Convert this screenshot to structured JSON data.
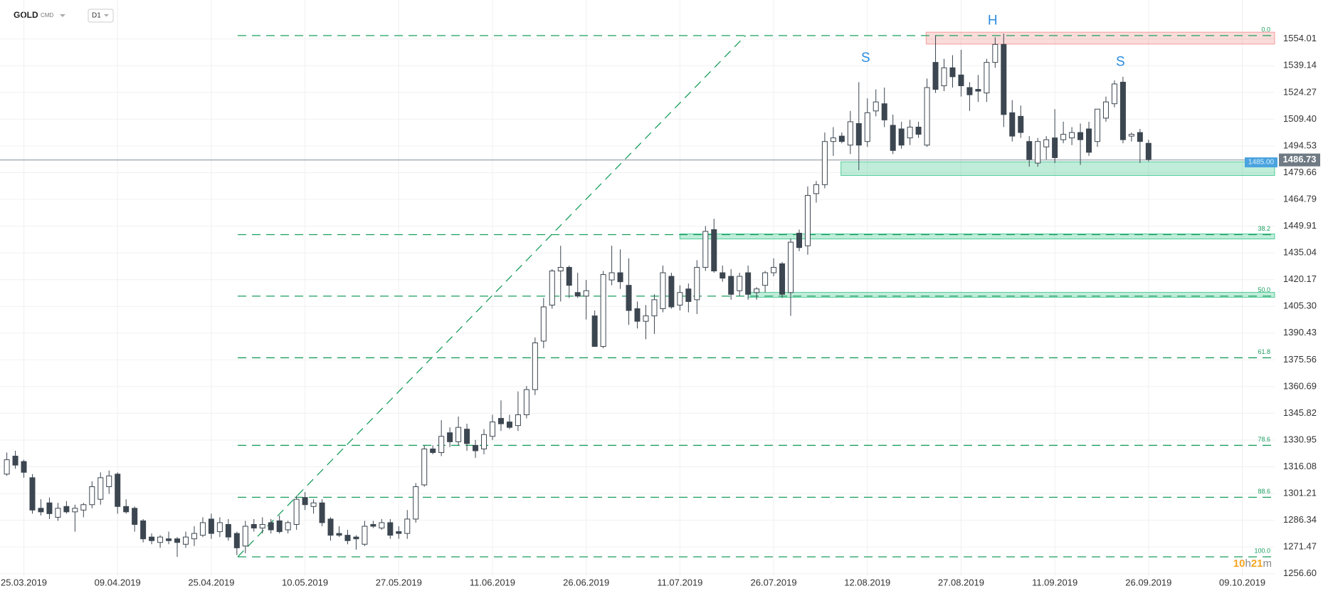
{
  "header": {
    "symbol": "GOLD",
    "market": "CMD",
    "interval": "D1"
  },
  "countdown": [
    "10",
    "h",
    "21",
    "m"
  ],
  "chart_data": {
    "type": "candlestick",
    "ylim": [
      1255.2,
      1575.7
    ],
    "xlim": [
      -0.8,
      148.8
    ],
    "grid": true,
    "yticks": [
      {
        "value": 1256.6,
        "label": "1256.60"
      },
      1271.47,
      1286.34,
      1301.21,
      1316.08,
      1330.95,
      1345.82,
      1360.69,
      1375.56,
      {
        "value": 1390.43,
        "label": "1390.43"
      },
      {
        "value": 1405.3,
        "label": "1405.30"
      },
      1420.17,
      1435.04,
      1449.91,
      1464.79,
      1479.66,
      1494.53,
      {
        "value": 1509.4,
        "label": "1509.40"
      },
      1524.27,
      1539.14,
      1554.01
    ],
    "xticks": [
      {
        "value": 2,
        "label": "25.03.2019"
      },
      {
        "value": 13,
        "label": "09.04.2019"
      },
      {
        "value": 24,
        "label": "25.04.2019"
      },
      {
        "value": 35,
        "label": "10.05.2019"
      },
      {
        "value": 46,
        "label": "27.05.2019"
      },
      {
        "value": 57,
        "label": "11.06.2019"
      },
      {
        "value": 68,
        "label": "26.06.2019"
      },
      {
        "value": 79,
        "label": "11.07.2019"
      },
      {
        "value": 90,
        "label": "26.07.2019"
      },
      {
        "value": 101,
        "label": "12.08.2019"
      },
      {
        "value": 112,
        "label": "27.08.2019"
      },
      {
        "value": 123,
        "label": "11.09.2019"
      },
      {
        "value": 134,
        "label": "26.09.2019"
      },
      {
        "value": 145,
        "label": "09.10.2019"
      }
    ],
    "up_color": "#ffffff",
    "down_color": "#3c4650",
    "open": [
      1312,
      1322,
      1319,
      1310,
      1293,
      1296,
      1288,
      1294,
      1291,
      1292,
      1295,
      1298,
      1305,
      1312,
      1294,
      1293,
      1286,
      1277,
      1274,
      1276,
      1276,
      1273,
      1276,
      1278,
      1287,
      1280,
      1284,
      1279,
      1272,
      1284,
      1282,
      1285,
      1286,
      1281,
      1284,
      1299,
      1294,
      1296,
      1287,
      1279,
      1278,
      1277,
      1273,
      1284,
      1282,
      1285,
      1280,
      1279,
      1287,
      1306,
      1326,
      1324,
      1335,
      1330,
      1337,
      1328,
      1326,
      1333,
      1343,
      1341,
      1339,
      1345,
      1359,
      1386,
      1406,
      1425,
      1427,
      1413,
      1411,
      1400,
      1383,
      1420,
      1424,
      1417,
      1404,
      1397,
      1400,
      1404,
      1422,
      1406,
      1415,
      1409,
      1427,
      1448,
      1424,
      1422,
      1414,
      1424,
      1413,
      1417,
      1424,
      1429,
      1413,
      1446,
      1439,
      1468,
      1473,
      1497,
      1500,
      1495,
      1507,
      1497,
      1514,
      1518,
      1506,
      1504,
      1499,
      1505,
      1495,
      1541,
      1528,
      1538,
      1534,
      1527,
      1526,
      1524,
      1541,
      1551,
      1513,
      1511,
      1497,
      1485,
      1494,
      1499,
      1498,
      1499,
      1502,
      1504,
      1497,
      1510,
      1518,
      1530,
      1500,
      1502,
      1496
    ],
    "high": [
      1324,
      1325,
      1320,
      1312,
      1298,
      1299,
      1296,
      1297,
      1295,
      1296,
      1308,
      1313,
      1314,
      1313,
      1298,
      1294,
      1287,
      1279,
      1278,
      1280,
      1277,
      1280,
      1283,
      1288,
      1290,
      1288,
      1287,
      1280,
      1286,
      1287,
      1288,
      1287,
      1289,
      1286,
      1300,
      1302,
      1298,
      1298,
      1288,
      1283,
      1281,
      1278,
      1286,
      1286,
      1287,
      1287,
      1283,
      1292,
      1307,
      1328,
      1328,
      1342,
      1338,
      1344,
      1340,
      1331,
      1337,
      1345,
      1353,
      1345,
      1358,
      1361,
      1388,
      1410,
      1426,
      1439,
      1428,
      1424,
      1420,
      1403,
      1425,
      1439,
      1437,
      1432,
      1408,
      1406,
      1412,
      1428,
      1424,
      1417,
      1418,
      1431,
      1450,
      1454,
      1428,
      1426,
      1424,
      1428,
      1416,
      1425,
      1432,
      1430,
      1443,
      1448,
      1472,
      1475,
      1502,
      1505,
      1502,
      1514,
      1530,
      1521,
      1526,
      1527,
      1512,
      1508,
      1509,
      1508,
      1532,
      1556,
      1543,
      1545,
      1548,
      1530,
      1534,
      1543,
      1555,
      1557,
      1520,
      1517,
      1500,
      1499,
      1500,
      1515,
      1508,
      1505,
      1507,
      1508,
      1515,
      1522,
      1531,
      1533,
      1502,
      1504,
      1498
    ],
    "low": [
      1311,
      1315,
      1310,
      1290,
      1289,
      1287,
      1286,
      1290,
      1280,
      1288,
      1293,
      1295,
      1301,
      1290,
      1290,
      1280,
      1274,
      1273,
      1271,
      1273,
      1266,
      1271,
      1272,
      1277,
      1276,
      1277,
      1275,
      1267,
      1268,
      1280,
      1279,
      1279,
      1279,
      1279,
      1281,
      1292,
      1290,
      1283,
      1275,
      1277,
      1273,
      1270,
      1272,
      1282,
      1281,
      1276,
      1276,
      1276,
      1285,
      1305,
      1323,
      1322,
      1327,
      1328,
      1325,
      1321,
      1323,
      1331,
      1336,
      1337,
      1336,
      1343,
      1356,
      1382,
      1404,
      1408,
      1410,
      1410,
      1398,
      1383,
      1382,
      1417,
      1415,
      1395,
      1393,
      1387,
      1390,
      1402,
      1404,
      1403,
      1402,
      1401,
      1425,
      1424,
      1419,
      1409,
      1411,
      1409,
      1409,
      1413,
      1422,
      1410,
      1400,
      1436,
      1434,
      1463,
      1471,
      1489,
      1496,
      1490,
      1481,
      1494,
      1511,
      1505,
      1490,
      1493,
      1495,
      1499,
      1494,
      1524,
      1525,
      1527,
      1522,
      1514,
      1519,
      1519,
      1538,
      1505,
      1497,
      1499,
      1483,
      1483,
      1487,
      1485,
      1496,
      1495,
      1484,
      1489,
      1494,
      1508,
      1516,
      1496,
      1497,
      1485,
      1486
    ],
    "close": [
      1320,
      1317,
      1313,
      1292,
      1291,
      1290,
      1293,
      1291,
      1293,
      1295,
      1305,
      1310,
      1311,
      1294,
      1291,
      1284,
      1276,
      1275,
      1277,
      1275,
      1274,
      1277,
      1279,
      1285,
      1279,
      1285,
      1277,
      1271,
      1283,
      1282,
      1284,
      1281,
      1280,
      1285,
      1298,
      1295,
      1296,
      1285,
      1278,
      1278,
      1275,
      1276,
      1283,
      1283,
      1285,
      1278,
      1279,
      1287,
      1305,
      1326,
      1324,
      1333,
      1330,
      1338,
      1329,
      1325,
      1334,
      1341,
      1340,
      1338,
      1345,
      1359,
      1385,
      1405,
      1425,
      1427,
      1417,
      1411,
      1414,
      1383,
      1423,
      1424,
      1419,
      1403,
      1397,
      1400,
      1409,
      1424,
      1405,
      1413,
      1408,
      1427,
      1447,
      1425,
      1421,
      1412,
      1422,
      1412,
      1415,
      1424,
      1427,
      1412,
      1441,
      1438,
      1467,
      1473,
      1497,
      1499,
      1497,
      1508,
      1495,
      1513,
      1519,
      1509,
      1492,
      1495,
      1505,
      1501,
      1527,
      1526,
      1538,
      1533,
      1528,
      1523,
      1525,
      1541,
      1551,
      1512,
      1500,
      1502,
      1487,
      1497,
      1498,
      1488,
      1501,
      1502,
      1498,
      1491,
      1515,
      1519,
      1529,
      1498,
      1501,
      1497,
      1487
    ],
    "last_price": 1486.73,
    "price_label": {
      "value": 1485,
      "label": "1485.00"
    },
    "fibonacci": {
      "color": "#1a9e5e",
      "from": {
        "index": 27.1,
        "price": 1266
      },
      "to": {
        "index": 86.7,
        "price": 1555.9
      },
      "levels": [
        {
          "label": "0.0",
          "price": 1555.9
        },
        {
          "label": "38.2",
          "price": 1445.2
        },
        {
          "label": "50.0",
          "price": 1411.0
        },
        {
          "label": "61.8",
          "price": 1376.7
        },
        {
          "label": "78.6",
          "price": 1328.0
        },
        {
          "label": "88.6",
          "price": 1299.1
        },
        {
          "label": "100.0",
          "price": 1266.0
        }
      ]
    },
    "zones": [
      {
        "from_index": 107.9,
        "top": 1557.8,
        "bottom": 1551.2,
        "color": "#f08a87"
      },
      {
        "from_index": 97.9,
        "top": 1485.7,
        "bottom": 1478.1,
        "color": "#2fc286"
      },
      {
        "from_index": 79.0,
        "top": 1445.6,
        "bottom": 1442.8,
        "color": "#2fc286"
      },
      {
        "from_index": 87.0,
        "top": 1413.1,
        "bottom": 1410.3,
        "color": "#2fc286"
      }
    ],
    "pattern_labels": [
      {
        "text": "S",
        "index": 100.8,
        "price": 1543.2
      },
      {
        "text": "H",
        "index": 115.7,
        "price": 1564.0
      },
      {
        "text": "S",
        "index": 130.7,
        "price": 1541.0
      }
    ],
    "pattern_color": "#2a8ce0"
  }
}
